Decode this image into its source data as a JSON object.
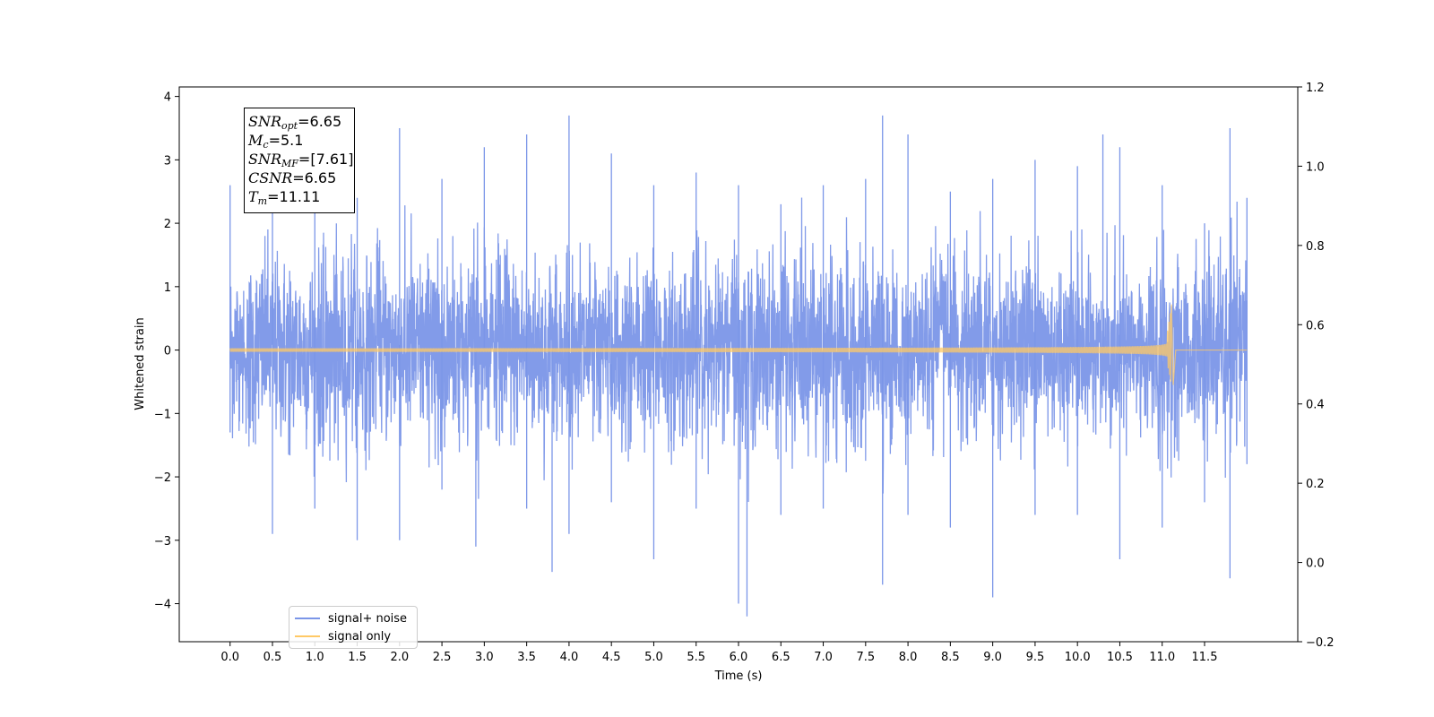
{
  "chart_data": {
    "type": "line",
    "xlabel": "Time (s)",
    "ylabel": "Whitened strain",
    "xlim": [
      -0.6,
      12.6
    ],
    "ylim": [
      -4.6,
      4.15
    ],
    "y2lim": [
      -0.2,
      1.2
    ],
    "x_ticks": [
      "0.0",
      "0.5",
      "1.0",
      "1.5",
      "2.0",
      "2.5",
      "3.0",
      "3.5",
      "4.0",
      "4.5",
      "5.0",
      "5.5",
      "6.0",
      "6.5",
      "7.0",
      "7.5",
      "8.0",
      "8.5",
      "9.0",
      "9.5",
      "10.0",
      "10.5",
      "11.0",
      "11.5"
    ],
    "y_ticks": [
      "4",
      "3",
      "2",
      "1",
      "0",
      "−1",
      "−2",
      "−3",
      "−4"
    ],
    "y2_ticks": [
      "1.2",
      "1.0",
      "0.8",
      "0.6",
      "0.4",
      "0.2",
      "0.0",
      "−0.2"
    ],
    "series": [
      {
        "name": "signal+ noise",
        "color": "#7b96e8",
        "x_range": [
          0.0,
          12.0
        ],
        "envelope_upper": [
          [
            0.0,
            2.6
          ],
          [
            0.5,
            2.5
          ],
          [
            1.0,
            3.1
          ],
          [
            1.5,
            2.4
          ],
          [
            2.0,
            3.5
          ],
          [
            2.5,
            2.7
          ],
          [
            3.0,
            3.2
          ],
          [
            3.5,
            3.4
          ],
          [
            4.0,
            3.7
          ],
          [
            4.5,
            3.1
          ],
          [
            5.0,
            2.6
          ],
          [
            5.5,
            2.8
          ],
          [
            6.0,
            2.6
          ],
          [
            6.5,
            2.3
          ],
          [
            7.0,
            2.6
          ],
          [
            7.5,
            2.7
          ],
          [
            7.7,
            3.7
          ],
          [
            8.0,
            3.4
          ],
          [
            8.5,
            2.5
          ],
          [
            9.0,
            2.7
          ],
          [
            9.5,
            3.0
          ],
          [
            10.0,
            2.9
          ],
          [
            10.3,
            3.4
          ],
          [
            10.5,
            3.2
          ],
          [
            11.0,
            2.6
          ],
          [
            11.5,
            2.0
          ],
          [
            11.8,
            3.5
          ],
          [
            12.0,
            2.4
          ]
        ],
        "envelope_lower": [
          [
            0.0,
            -1.3
          ],
          [
            0.5,
            -2.9
          ],
          [
            1.0,
            -2.5
          ],
          [
            1.5,
            -3.0
          ],
          [
            2.0,
            -3.0
          ],
          [
            2.5,
            -2.2
          ],
          [
            2.9,
            -3.1
          ],
          [
            3.5,
            -2.5
          ],
          [
            3.8,
            -3.5
          ],
          [
            4.0,
            -2.9
          ],
          [
            4.5,
            -2.4
          ],
          [
            5.0,
            -3.3
          ],
          [
            5.5,
            -2.5
          ],
          [
            6.0,
            -4.0
          ],
          [
            6.1,
            -4.2
          ],
          [
            6.5,
            -2.6
          ],
          [
            7.0,
            -2.5
          ],
          [
            7.7,
            -3.7
          ],
          [
            8.0,
            -2.6
          ],
          [
            8.5,
            -2.8
          ],
          [
            9.0,
            -3.9
          ],
          [
            9.5,
            -2.6
          ],
          [
            10.0,
            -2.6
          ],
          [
            10.5,
            -3.3
          ],
          [
            11.0,
            -2.8
          ],
          [
            11.5,
            -2.4
          ],
          [
            11.8,
            -3.6
          ],
          [
            12.0,
            -1.8
          ]
        ]
      },
      {
        "name": "signal only",
        "color": "#ffc966",
        "x_range": [
          0.0,
          12.0
        ],
        "merger_time": 11.11,
        "peak_amplitude": [
          0.72,
          -0.55
        ],
        "post_merger_amplitude": 0.0
      }
    ],
    "annotation": [
      {
        "name": "SNR",
        "sub": "opt",
        "value": "=6.65"
      },
      {
        "name": "M",
        "sub": "c",
        "value": "=5.1"
      },
      {
        "name": "SNR",
        "sub": "MF",
        "value": "=[7.61]"
      },
      {
        "name": "CSNR",
        "sub": "",
        "value": "=6.65"
      },
      {
        "name": "T",
        "sub": "m",
        "value": "=11.11"
      }
    ],
    "legend_position": "lower-left",
    "grid": false
  }
}
